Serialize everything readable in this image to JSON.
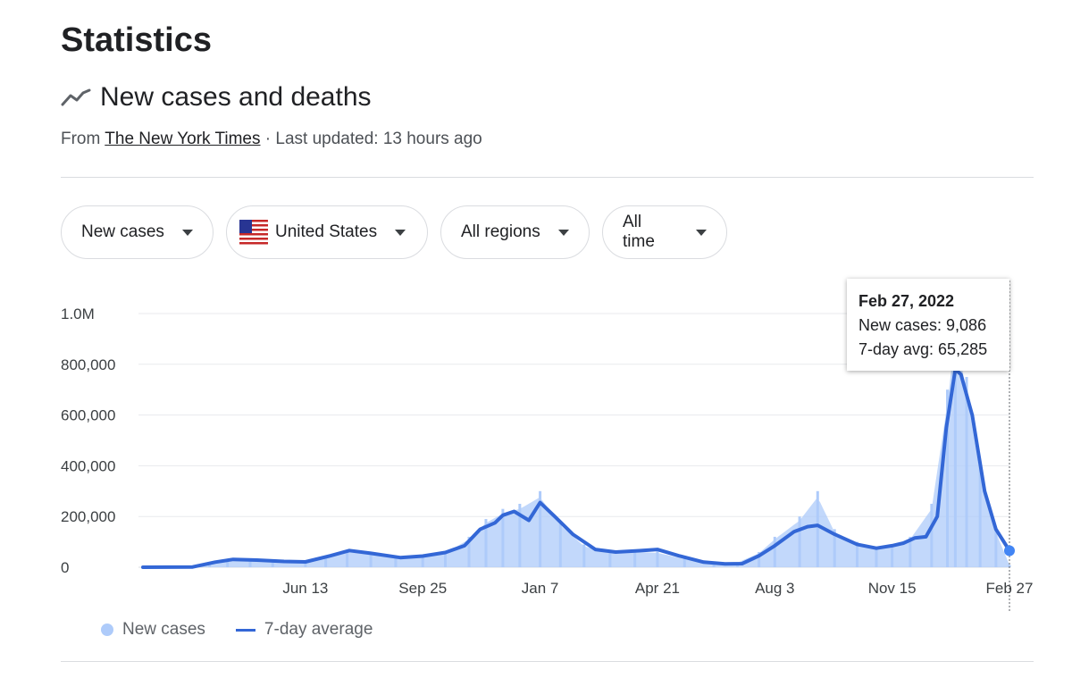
{
  "page": {
    "title": "Statistics",
    "section_title": "New cases and deaths",
    "source_prefix": "From ",
    "source_name": "The New York Times",
    "source_suffix": " · Last updated: 13 hours ago"
  },
  "filters": [
    {
      "label": "New cases",
      "icon": "chevron-down-icon"
    },
    {
      "label": "United States",
      "icon": "us-flag-icon"
    },
    {
      "label": "All regions",
      "icon": "chevron-down-icon"
    },
    {
      "label": "All time",
      "icon": "chevron-down-icon"
    }
  ],
  "tooltip": {
    "date": "Feb 27, 2022",
    "line1": "New cases: 9,086",
    "line2": "7-day avg: 65,285"
  },
  "legend": {
    "new_cases": "New cases",
    "avg": "7-day average"
  },
  "colors": {
    "bars": "#aecbfa",
    "line": "#3367d6",
    "grid": "#e8eaed",
    "text": "#202124"
  },
  "chart_data": {
    "type": "bar",
    "ylim": [
      0,
      1000000
    ],
    "y_ticks": [
      0,
      200000,
      400000,
      600000,
      800000,
      1000000
    ],
    "y_tick_labels": [
      "0",
      "200,000",
      "400,000",
      "600,000",
      "800,000",
      "1.0M"
    ],
    "x_ticks": [
      {
        "label": "Jun 13",
        "date": "2020-06-13"
      },
      {
        "label": "Sep 25",
        "date": "2020-09-25"
      },
      {
        "label": "Jan 7",
        "date": "2021-01-07"
      },
      {
        "label": "Apr 21",
        "date": "2021-04-21"
      },
      {
        "label": "Aug 3",
        "date": "2021-08-03"
      },
      {
        "label": "Nov 15",
        "date": "2021-11-15"
      },
      {
        "label": "Feb 27",
        "date": "2022-02-27"
      }
    ],
    "x_range": [
      "2020-01-21",
      "2022-02-27"
    ],
    "series": [
      {
        "name": "New cases",
        "kind": "bar",
        "points": [
          [
            "2020-01-21",
            0
          ],
          [
            "2020-03-01",
            1000
          ],
          [
            "2020-03-20",
            15000
          ],
          [
            "2020-04-05",
            33000
          ],
          [
            "2020-04-25",
            30000
          ],
          [
            "2020-05-15",
            25000
          ],
          [
            "2020-06-13",
            22000
          ],
          [
            "2020-07-01",
            45000
          ],
          [
            "2020-07-20",
            68000
          ],
          [
            "2020-08-10",
            55000
          ],
          [
            "2020-09-01",
            42000
          ],
          [
            "2020-09-25",
            48000
          ],
          [
            "2020-10-15",
            60000
          ],
          [
            "2020-11-05",
            120000
          ],
          [
            "2020-11-20",
            190000
          ],
          [
            "2020-12-05",
            230000
          ],
          [
            "2020-12-20",
            250000
          ],
          [
            "2021-01-07",
            300000
          ],
          [
            "2021-01-25",
            180000
          ],
          [
            "2021-02-15",
            90000
          ],
          [
            "2021-03-10",
            60000
          ],
          [
            "2021-04-01",
            65000
          ],
          [
            "2021-04-21",
            62000
          ],
          [
            "2021-05-15",
            35000
          ],
          [
            "2021-06-10",
            15000
          ],
          [
            "2021-07-01",
            20000
          ],
          [
            "2021-07-20",
            60000
          ],
          [
            "2021-08-03",
            120000
          ],
          [
            "2021-08-25",
            200000
          ],
          [
            "2021-09-10",
            300000
          ],
          [
            "2021-09-25",
            150000
          ],
          [
            "2021-10-15",
            100000
          ],
          [
            "2021-11-01",
            80000
          ],
          [
            "2021-11-15",
            90000
          ],
          [
            "2021-12-01",
            120000
          ],
          [
            "2021-12-20",
            250000
          ],
          [
            "2022-01-03",
            700000
          ],
          [
            "2022-01-10",
            1000000
          ],
          [
            "2022-01-20",
            750000
          ],
          [
            "2022-02-01",
            400000
          ],
          [
            "2022-02-15",
            150000
          ],
          [
            "2022-02-27",
            9086
          ]
        ]
      },
      {
        "name": "7-day average",
        "kind": "line",
        "points": [
          [
            "2020-01-21",
            0
          ],
          [
            "2020-03-05",
            1000
          ],
          [
            "2020-03-25",
            20000
          ],
          [
            "2020-04-10",
            31000
          ],
          [
            "2020-05-01",
            28000
          ],
          [
            "2020-05-25",
            23000
          ],
          [
            "2020-06-13",
            21000
          ],
          [
            "2020-07-05",
            45000
          ],
          [
            "2020-07-22",
            66000
          ],
          [
            "2020-08-10",
            55000
          ],
          [
            "2020-09-05",
            38000
          ],
          [
            "2020-09-25",
            44000
          ],
          [
            "2020-10-15",
            58000
          ],
          [
            "2020-11-01",
            85000
          ],
          [
            "2020-11-15",
            150000
          ],
          [
            "2020-11-28",
            175000
          ],
          [
            "2020-12-05",
            205000
          ],
          [
            "2020-12-15",
            220000
          ],
          [
            "2020-12-28",
            185000
          ],
          [
            "2021-01-07",
            255000
          ],
          [
            "2021-01-20",
            200000
          ],
          [
            "2021-02-05",
            130000
          ],
          [
            "2021-02-25",
            70000
          ],
          [
            "2021-03-15",
            60000
          ],
          [
            "2021-04-05",
            65000
          ],
          [
            "2021-04-21",
            70000
          ],
          [
            "2021-05-10",
            45000
          ],
          [
            "2021-06-01",
            20000
          ],
          [
            "2021-06-20",
            13000
          ],
          [
            "2021-07-05",
            14000
          ],
          [
            "2021-07-20",
            45000
          ],
          [
            "2021-08-03",
            85000
          ],
          [
            "2021-08-20",
            140000
          ],
          [
            "2021-09-01",
            160000
          ],
          [
            "2021-09-10",
            165000
          ],
          [
            "2021-09-25",
            130000
          ],
          [
            "2021-10-15",
            90000
          ],
          [
            "2021-11-01",
            75000
          ],
          [
            "2021-11-15",
            85000
          ],
          [
            "2021-11-25",
            95000
          ],
          [
            "2021-12-05",
            115000
          ],
          [
            "2021-12-15",
            120000
          ],
          [
            "2021-12-25",
            200000
          ],
          [
            "2022-01-02",
            550000
          ],
          [
            "2022-01-10",
            780000
          ],
          [
            "2022-01-15",
            760000
          ],
          [
            "2022-01-25",
            600000
          ],
          [
            "2022-02-05",
            300000
          ],
          [
            "2022-02-15",
            150000
          ],
          [
            "2022-02-27",
            65285
          ]
        ]
      }
    ]
  }
}
